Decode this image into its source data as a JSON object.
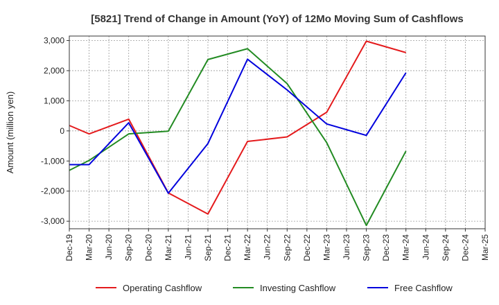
{
  "chart_data": {
    "type": "line",
    "title": "[5821]  Trend of Change in Amount (YoY) of 12Mo Moving Sum of Cashflows",
    "xlabel": "",
    "ylabel": "Amount (million yen)",
    "ylim": [
      -3250,
      3150
    ],
    "yticks": [
      3000,
      2000,
      1000,
      0,
      -1000,
      -2000,
      -3000
    ],
    "ytick_labels": [
      "3,000",
      "2,000",
      "1,000",
      "0",
      "-1,000",
      "-2,000",
      "-3,000"
    ],
    "categories": [
      "Dec-19",
      "Mar-20",
      "Jun-20",
      "Sep-20",
      "Dec-20",
      "Mar-21",
      "Jun-21",
      "Sep-21",
      "Dec-21",
      "Mar-22",
      "Jun-22",
      "Sep-22",
      "Dec-22",
      "Mar-23",
      "Jun-23",
      "Sep-23",
      "Dec-23",
      "Mar-24",
      "Jun-24",
      "Sep-24",
      "Dec-24",
      "Mar-25"
    ],
    "grid": true,
    "legend_position": "bottom",
    "series": [
      {
        "name": "Operating Cashflow",
        "color": "#e41a1c",
        "values": [
          180,
          -100,
          null,
          390,
          null,
          -2060,
          null,
          -2760,
          null,
          -350,
          null,
          -200,
          null,
          620,
          null,
          2980,
          null,
          2600,
          null,
          null,
          null,
          null
        ]
      },
      {
        "name": "Investing Cashflow",
        "color": "#228b22",
        "values": [
          -1310,
          -980,
          null,
          -100,
          null,
          -10,
          null,
          2370,
          null,
          2730,
          null,
          1570,
          null,
          -390,
          null,
          -3140,
          null,
          -670,
          null,
          null,
          null,
          null
        ]
      },
      {
        "name": "Free Cashflow",
        "color": "#0000dd",
        "values": [
          -1120,
          -1120,
          null,
          270,
          null,
          -2070,
          null,
          -420,
          null,
          2380,
          null,
          1360,
          null,
          230,
          null,
          -150,
          null,
          1930,
          null,
          null,
          null,
          null
        ]
      }
    ]
  }
}
